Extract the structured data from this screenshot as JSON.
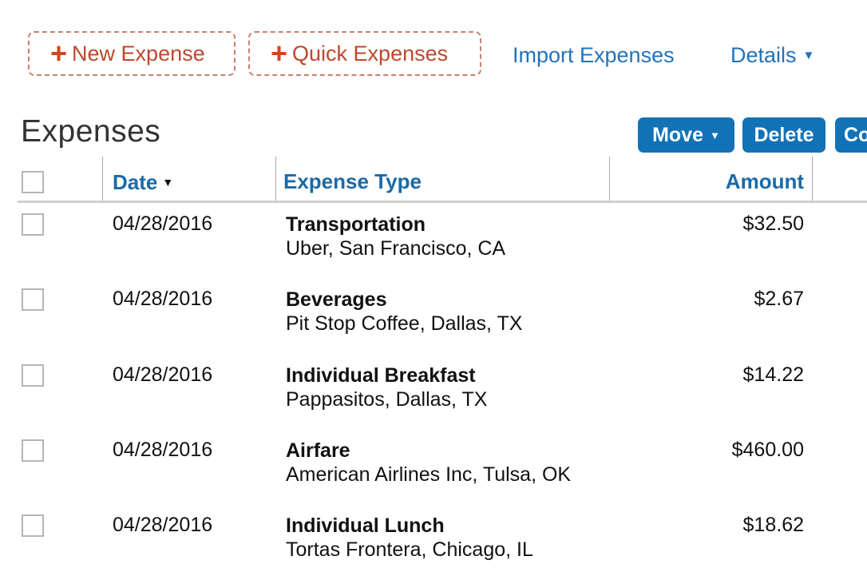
{
  "toolbar": {
    "new_expense": "New Expense",
    "quick_expenses": "Quick Expenses",
    "import_expenses": "Import Expenses",
    "details": "Details"
  },
  "section": {
    "title": "Expenses",
    "move": "Move",
    "delete": "Delete",
    "third_button_visible": "Co"
  },
  "table": {
    "headers": {
      "date": "Date",
      "expense_type": "Expense Type",
      "amount": "Amount"
    },
    "sort_column": "date",
    "rows": [
      {
        "date": "04/28/2016",
        "type": "Transportation",
        "vendor": "Uber, San Francisco, CA",
        "amount": "$32.50"
      },
      {
        "date": "04/28/2016",
        "type": "Beverages",
        "vendor": "Pit Stop Coffee, Dallas, TX",
        "amount": "$2.67"
      },
      {
        "date": "04/28/2016",
        "type": "Individual Breakfast",
        "vendor": "Pappasitos, Dallas, TX",
        "amount": "$14.22"
      },
      {
        "date": "04/28/2016",
        "type": "Airfare",
        "vendor": "American Airlines Inc, Tulsa, OK",
        "amount": "$460.00"
      },
      {
        "date": "04/28/2016",
        "type": "Individual Lunch",
        "vendor": "Tortas Frontera, Chicago, IL",
        "amount": "$18.62"
      }
    ]
  },
  "colors": {
    "accent_blue": "#1272b6",
    "link_blue": "#2273b9",
    "add_red": "#d2451e"
  }
}
